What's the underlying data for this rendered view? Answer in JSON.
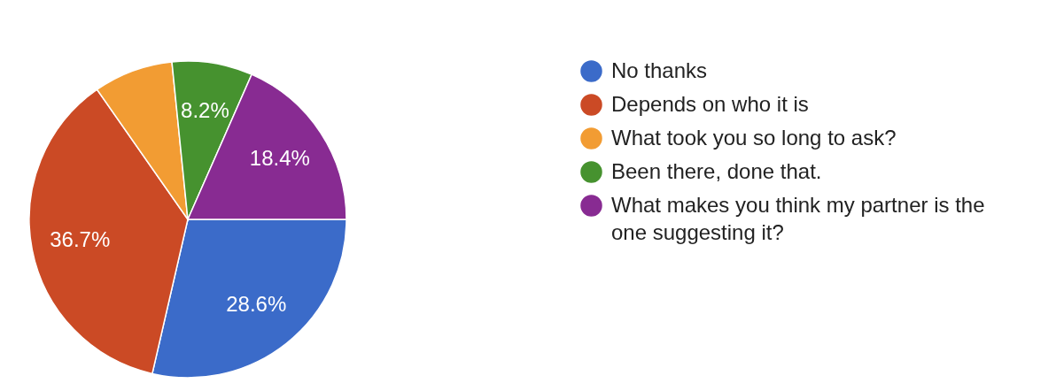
{
  "chart_data": {
    "type": "pie",
    "categories": [
      "No thanks",
      "Depends on who it is",
      "What took you so long to ask?",
      "Been there, done that.",
      "What makes you think my partner is the one suggesting it?"
    ],
    "values": [
      28.6,
      36.7,
      8.1,
      8.2,
      18.4
    ],
    "colors": [
      "#3b6bc9",
      "#cb4a25",
      "#f29c33",
      "#46922f",
      "#882b92"
    ],
    "value_labels": [
      "28.6%",
      "36.7%",
      null,
      "8.2%",
      "18.4%"
    ],
    "legend": "right"
  }
}
